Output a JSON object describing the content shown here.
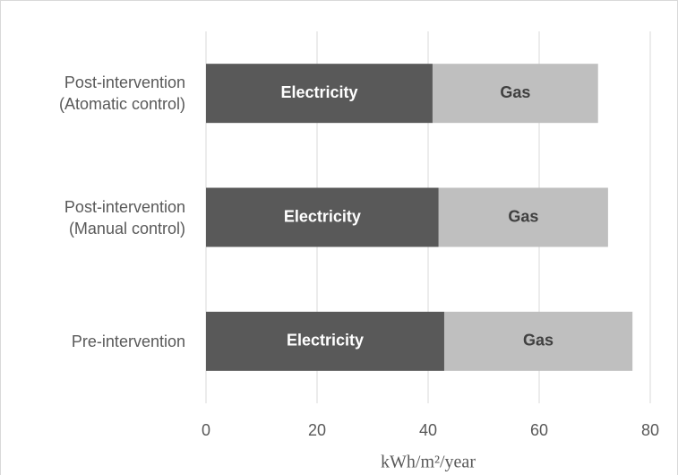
{
  "chart_data": {
    "type": "stacked-barh",
    "categories": [
      "Post-intervention\n(Atomatic control)",
      "Post-intervention\n(Manual control)",
      "Pre-intervention"
    ],
    "series": [
      {
        "name": "Electricity",
        "color": "#595959",
        "values": [
          40.8,
          41.9,
          42.9
        ]
      },
      {
        "name": "Gas",
        "color": "#bfbfbf",
        "values": [
          29.8,
          30.5,
          33.9
        ]
      }
    ],
    "xlabel": "kWh/m²/year",
    "xlim": [
      0,
      80
    ],
    "xticks": [
      0,
      20,
      40,
      60,
      80
    ],
    "grid": true
  }
}
